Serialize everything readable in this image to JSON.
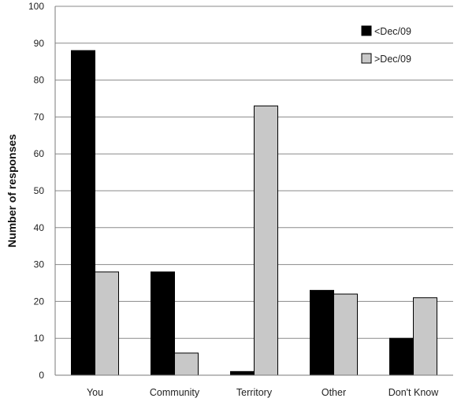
{
  "chart_data": {
    "type": "bar",
    "title": "",
    "xlabel": "",
    "ylabel": "Number of responses",
    "ylim": [
      0,
      100
    ],
    "yticks": [
      0,
      10,
      20,
      30,
      40,
      50,
      60,
      70,
      80,
      90,
      100
    ],
    "grid": true,
    "legend_position": "top-right",
    "categories": [
      "You",
      "Community",
      "Territory",
      "Other",
      "Don't Know"
    ],
    "series": [
      {
        "name": "<Dec/09",
        "color": "#000000",
        "values": [
          88,
          28,
          1,
          23,
          10
        ]
      },
      {
        "name": ">Dec/09",
        "color": "#c8c8c8",
        "values": [
          28,
          6,
          73,
          22,
          21
        ]
      }
    ]
  }
}
